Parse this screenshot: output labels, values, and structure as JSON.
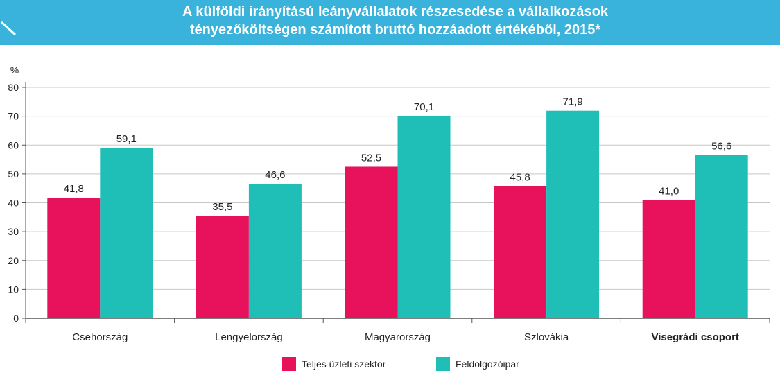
{
  "title_lines": [
    "A külföldi irányítású leányvállalatok részesedése a vállalkozások",
    "tényezőköltségen számított bruttó hozzáadott értékéből, 2015*"
  ],
  "colors": {
    "header_bg": "#39b3dc",
    "series_1": "#e8125c",
    "series_2": "#1fbfb8",
    "grid": "#c8c8c8",
    "axis": "#555555"
  },
  "chart_data": {
    "type": "bar",
    "title": "A külföldi irányítású leányvállalatok részesedése a vállalkozások tényezőköltségen számított bruttó hozzáadott értékéből, 2015*",
    "ylabel": "%",
    "xlabel": "",
    "ylim": [
      0,
      80
    ],
    "yticks": [
      0,
      10,
      20,
      30,
      40,
      50,
      60,
      70,
      80
    ],
    "grid": true,
    "legend_position": "bottom",
    "categories": [
      "Csehország",
      "Lengyelország",
      "Magyarország",
      "Szlovákia",
      "Visegrádi csoport"
    ],
    "bold_categories": [
      "Visegrádi csoport"
    ],
    "series": [
      {
        "name": "Teljes üzleti szektor",
        "color": "#e8125c",
        "values": [
          41.8,
          35.5,
          52.5,
          45.8,
          41.0
        ],
        "labels": [
          "41,8",
          "35,5",
          "52,5",
          "45,8",
          "41,0"
        ]
      },
      {
        "name": "Feldolgozóipar",
        "color": "#1fbfb8",
        "values": [
          59.1,
          46.6,
          70.1,
          71.9,
          56.6
        ],
        "labels": [
          "59,1",
          "46,6",
          "70,1",
          "71,9",
          "56,6"
        ]
      }
    ]
  }
}
